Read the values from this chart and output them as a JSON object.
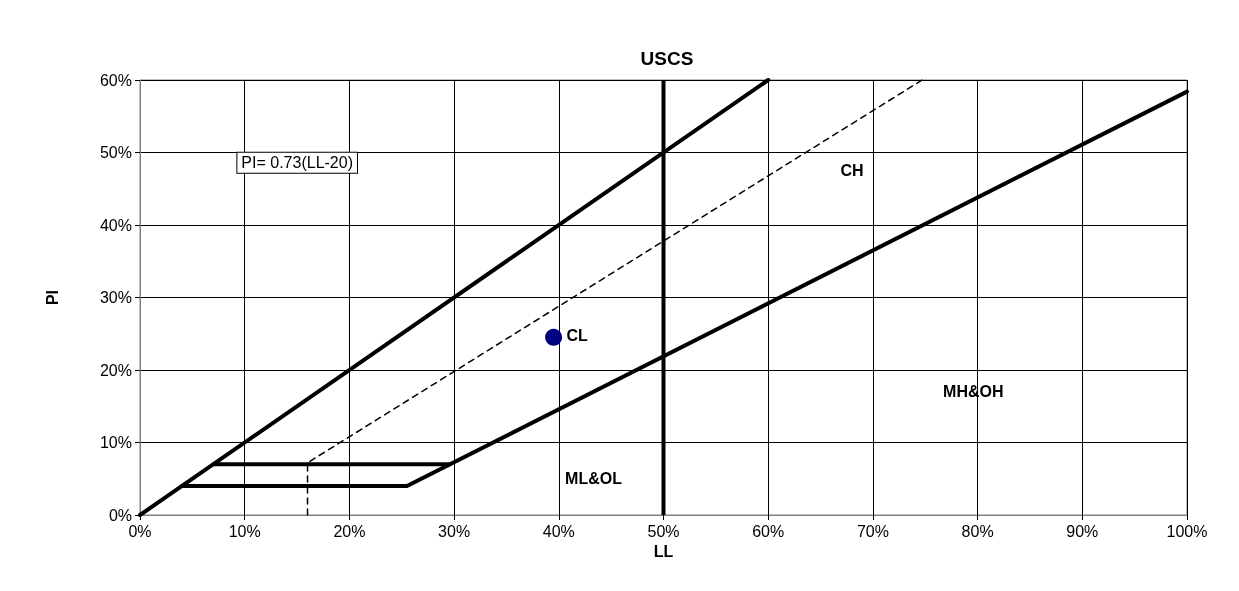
{
  "chart_data": {
    "type": "line",
    "title": "USCS",
    "xlabel": "LL",
    "ylabel": "PI",
    "xlim": [
      0,
      100
    ],
    "ylim": [
      0,
      60
    ],
    "xticks": [
      {
        "value": 0,
        "label": "0%"
      },
      {
        "value": 10,
        "label": "10%"
      },
      {
        "value": 20,
        "label": "20%"
      },
      {
        "value": 30,
        "label": "30%"
      },
      {
        "value": 40,
        "label": "40%"
      },
      {
        "value": 50,
        "label": "50%"
      },
      {
        "value": 60,
        "label": "60%"
      },
      {
        "value": 70,
        "label": "70%"
      },
      {
        "value": 80,
        "label": "80%"
      },
      {
        "value": 90,
        "label": "90%"
      },
      {
        "value": 100,
        "label": "100%"
      }
    ],
    "yticks": [
      {
        "value": 0,
        "label": "0%"
      },
      {
        "value": 10,
        "label": "10%"
      },
      {
        "value": 20,
        "label": "20%"
      },
      {
        "value": 30,
        "label": "30%"
      },
      {
        "value": 40,
        "label": "40%"
      },
      {
        "value": 50,
        "label": "50%"
      },
      {
        "value": 60,
        "label": "60%"
      }
    ],
    "grid": true,
    "marker": "none",
    "ref_lines": [
      {
        "axis": "x",
        "value": 50,
        "color": "#000000",
        "line_style": "solid"
      }
    ],
    "series": [
      {
        "color": "#000000",
        "line_style": "solid",
        "x": [
          0,
          60
        ],
        "values": [
          0,
          60
        ]
      },
      {
        "color": "#000000",
        "line_style": "solid",
        "x": [
          4,
          25.5,
          100
        ],
        "values": [
          4,
          4,
          58.4
        ]
      },
      {
        "color": "#000000",
        "line_style": "solid",
        "x": [
          7,
          29.6
        ],
        "values": [
          7,
          7
        ]
      },
      {
        "color": "#000000",
        "line_style": "dashed",
        "x": [
          16,
          16,
          74.7
        ],
        "values": [
          0,
          7.2,
          60
        ]
      },
      {
        "type": "scatter",
        "color": "#000080",
        "marker": "circle",
        "x": [
          39.5
        ],
        "values": [
          24.5
        ]
      }
    ],
    "annotations": [
      "PI= 0.73(LL-20)",
      "CH",
      {
        "text": "CL",
        "x": 39.5,
        "y": 24.5
      },
      "MH&OH",
      "ML&OL"
    ]
  }
}
